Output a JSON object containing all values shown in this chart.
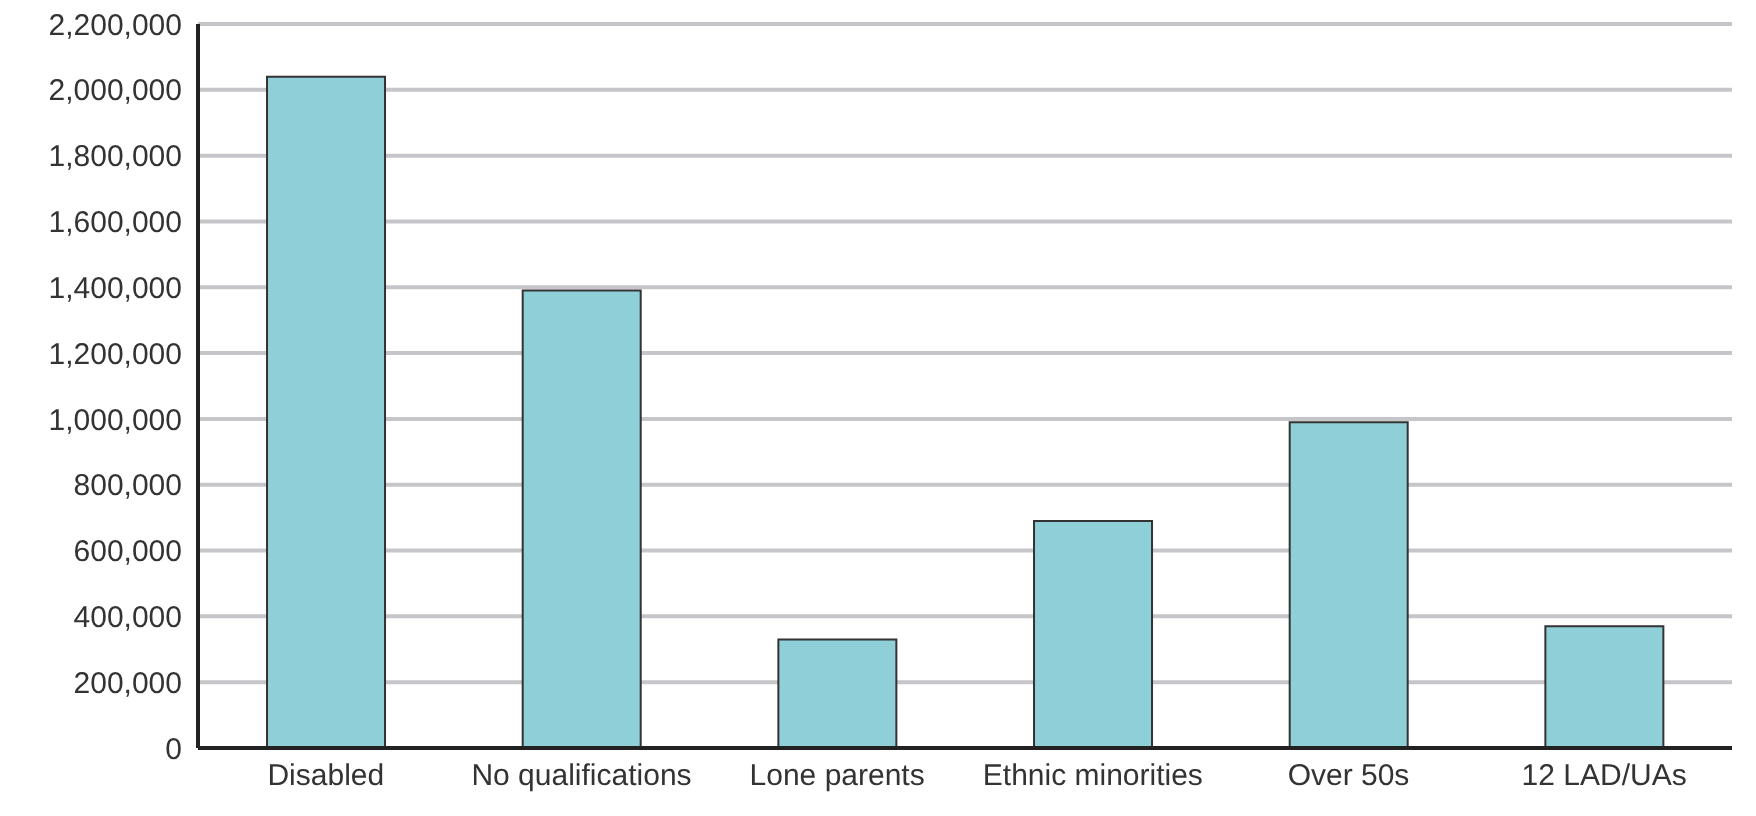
{
  "chart_data": {
    "type": "bar",
    "categories": [
      "Disabled",
      "No qualifications",
      "Lone parents",
      "Ethnic minorities",
      "Over 50s",
      "12 LAD/UAs"
    ],
    "values": [
      2040000,
      1390000,
      330000,
      690000,
      990000,
      370000
    ],
    "color": "#8fd0d8",
    "ylim": [
      0,
      2200000
    ],
    "yticks": [
      0,
      {
        "value": 200000,
        "label": "200,000"
      },
      {
        "value": 400000,
        "label": "400,000"
      },
      {
        "value": 600000,
        "label": "600,000"
      },
      {
        "value": 800000,
        "label": "800,000"
      },
      {
        "value": 1000000,
        "label": "1,000,000"
      },
      {
        "value": 1200000,
        "label": "1,200,000"
      },
      {
        "value": 1400000,
        "label": "1,400,000"
      },
      {
        "value": 1600000,
        "label": "1,600,000"
      },
      {
        "value": 1800000,
        "label": "1,800,000"
      },
      {
        "value": 2000000,
        "label": "2,000,000"
      },
      {
        "value": 2200000,
        "label": "2,200,000"
      }
    ],
    "grid": "y",
    "legend": false
  }
}
